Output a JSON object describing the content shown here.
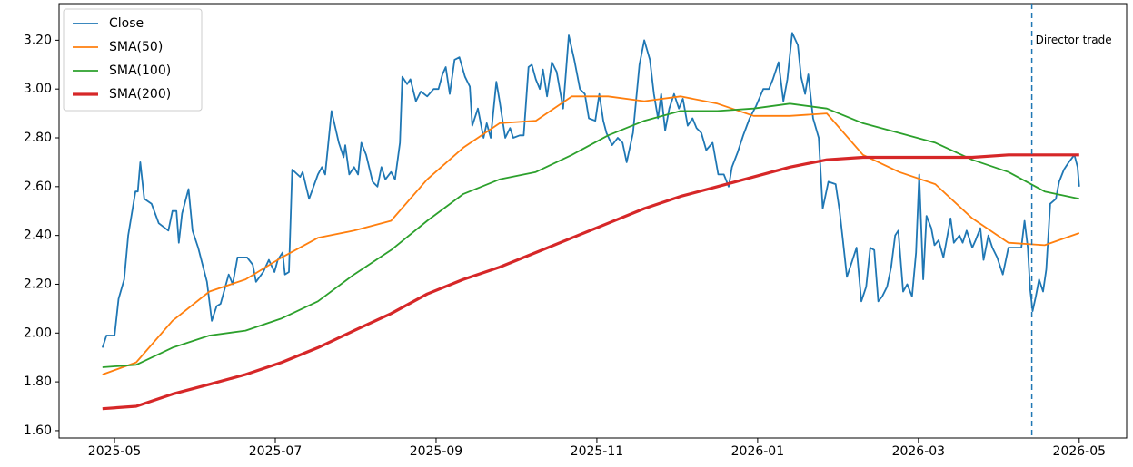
{
  "chart_data": {
    "type": "line",
    "xlim": [
      4.31,
      17.59
    ],
    "ylim": [
      1.57,
      3.35
    ],
    "xticks": [
      {
        "value": 5,
        "label": "2025-05"
      },
      {
        "value": 7,
        "label": "2025-07"
      },
      {
        "value": 9,
        "label": "2025-09"
      },
      {
        "value": 11,
        "label": "2025-11"
      },
      {
        "value": 13,
        "label": "2026-01"
      },
      {
        "value": 15,
        "label": "2026-03"
      },
      {
        "value": 17,
        "label": "2026-05"
      }
    ],
    "yticks": [
      {
        "value": 1.6,
        "label": "1.60"
      },
      {
        "value": 1.8,
        "label": "1.80"
      },
      {
        "value": 2.0,
        "label": "2.00"
      },
      {
        "value": 2.2,
        "label": "2.20"
      },
      {
        "value": 2.4,
        "label": "2.40"
      },
      {
        "value": 2.6,
        "label": "2.60"
      },
      {
        "value": 2.8,
        "label": "2.80"
      },
      {
        "value": 3.0,
        "label": "3.00"
      },
      {
        "value": 3.2,
        "label": "3.20"
      }
    ],
    "legend": "upper left",
    "series": [
      {
        "name": "Close",
        "color": "#1f77b4",
        "x": [
          4.85,
          4.9,
          5.0,
          5.05,
          5.12,
          5.17,
          5.26,
          5.29,
          5.32,
          5.37,
          5.46,
          5.55,
          5.67,
          5.72,
          5.77,
          5.8,
          5.84,
          5.92,
          5.97,
          6.04,
          6.15,
          6.21,
          6.27,
          6.32,
          6.42,
          6.47,
          6.53,
          6.65,
          6.72,
          6.76,
          6.85,
          6.92,
          6.99,
          7.03,
          7.09,
          7.12,
          7.17,
          7.21,
          7.31,
          7.34,
          7.42,
          7.53,
          7.58,
          7.62,
          7.7,
          7.79,
          7.85,
          7.87,
          7.92,
          7.98,
          8.03,
          8.07,
          8.13,
          8.21,
          8.27,
          8.32,
          8.37,
          8.44,
          8.49,
          8.55,
          8.58,
          8.64,
          8.68,
          8.75,
          8.81,
          8.89,
          8.97,
          9.03,
          9.08,
          9.12,
          9.17,
          9.23,
          9.29,
          9.36,
          9.42,
          9.45,
          9.52,
          9.59,
          9.63,
          9.68,
          9.75,
          9.79,
          9.86,
          9.92,
          9.96,
          10.04,
          10.09,
          10.15,
          10.19,
          10.24,
          10.29,
          10.33,
          10.38,
          10.44,
          10.5,
          10.58,
          10.65,
          10.72,
          10.79,
          10.85,
          10.9,
          10.98,
          11.03,
          11.08,
          11.12,
          11.19,
          11.26,
          11.32,
          11.37,
          11.45,
          11.53,
          11.59,
          11.66,
          11.71,
          11.76,
          11.8,
          11.85,
          11.9,
          11.96,
          12.02,
          12.07,
          12.13,
          12.19,
          12.24,
          12.3,
          12.36,
          12.44,
          12.51,
          12.58,
          12.64,
          12.68,
          12.75,
          12.82,
          12.9,
          12.98,
          13.07,
          13.14,
          13.19,
          13.26,
          13.32,
          13.37,
          13.43,
          13.5,
          13.54,
          13.59,
          13.63,
          13.69,
          13.76,
          13.81,
          13.88,
          13.97,
          14.02,
          14.06,
          14.11,
          14.18,
          14.23,
          14.29,
          14.35,
          14.4,
          14.45,
          14.5,
          14.55,
          14.61,
          14.66,
          14.71,
          14.75,
          14.81,
          14.86,
          14.92,
          14.97,
          15.01,
          15.06,
          15.1,
          15.16,
          15.2,
          15.25,
          15.31,
          15.35,
          15.4,
          15.44,
          15.51,
          15.55,
          15.6,
          15.67,
          15.71,
          15.77,
          15.81,
          15.87,
          15.92,
          15.98,
          16.05,
          16.12,
          16.21,
          16.28,
          16.32,
          16.36,
          16.39,
          16.42,
          16.46,
          16.5,
          16.55,
          16.59,
          16.64,
          16.71,
          16.75,
          16.81,
          16.87,
          16.94,
          16.98,
          17.0
        ],
        "values": [
          1.94,
          1.99,
          1.99,
          2.14,
          2.22,
          2.4,
          2.58,
          2.58,
          2.7,
          2.55,
          2.53,
          2.45,
          2.42,
          2.5,
          2.5,
          2.37,
          2.49,
          2.59,
          2.42,
          2.35,
          2.21,
          2.05,
          2.11,
          2.12,
          2.24,
          2.2,
          2.31,
          2.31,
          2.28,
          2.21,
          2.25,
          2.3,
          2.25,
          2.3,
          2.33,
          2.24,
          2.25,
          2.67,
          2.64,
          2.66,
          2.55,
          2.65,
          2.68,
          2.65,
          2.91,
          2.78,
          2.72,
          2.77,
          2.65,
          2.68,
          2.65,
          2.78,
          2.73,
          2.62,
          2.6,
          2.68,
          2.63,
          2.66,
          2.63,
          2.78,
          3.05,
          3.02,
          3.04,
          2.95,
          2.99,
          2.97,
          3.0,
          3.0,
          3.06,
          3.09,
          2.98,
          3.12,
          3.13,
          3.05,
          3.01,
          2.85,
          2.92,
          2.8,
          2.86,
          2.8,
          3.03,
          2.95,
          2.8,
          2.84,
          2.8,
          2.81,
          2.81,
          3.09,
          3.1,
          3.04,
          3.0,
          3.08,
          2.97,
          3.11,
          3.07,
          2.92,
          3.22,
          3.12,
          3.0,
          2.98,
          2.88,
          2.87,
          2.98,
          2.87,
          2.82,
          2.77,
          2.8,
          2.78,
          2.7,
          2.82,
          3.1,
          3.2,
          3.12,
          2.98,
          2.88,
          2.98,
          2.83,
          2.92,
          2.98,
          2.92,
          2.96,
          2.85,
          2.88,
          2.84,
          2.82,
          2.75,
          2.78,
          2.65,
          2.65,
          2.6,
          2.68,
          2.74,
          2.81,
          2.88,
          2.93,
          3.0,
          3.0,
          3.04,
          3.11,
          2.95,
          3.04,
          3.23,
          3.18,
          3.05,
          2.98,
          3.06,
          2.88,
          2.8,
          2.51,
          2.62,
          2.61,
          2.5,
          2.38,
          2.23,
          2.3,
          2.35,
          2.13,
          2.19,
          2.35,
          2.34,
          2.13,
          2.15,
          2.19,
          2.27,
          2.4,
          2.42,
          2.17,
          2.2,
          2.15,
          2.33,
          2.65,
          2.22,
          2.48,
          2.43,
          2.36,
          2.38,
          2.31,
          2.38,
          2.47,
          2.37,
          2.4,
          2.37,
          2.42,
          2.35,
          2.38,
          2.43,
          2.3,
          2.4,
          2.35,
          2.31,
          2.24,
          2.35,
          2.35,
          2.35,
          2.46,
          2.35,
          2.18,
          2.09,
          2.15,
          2.22,
          2.17,
          2.26,
          2.53,
          2.55,
          2.62,
          2.67,
          2.7,
          2.73,
          2.68,
          2.6
        ]
      },
      {
        "name": "SMA(50)",
        "color": "#ff7f0e",
        "x": [
          4.85,
          5.27,
          5.72,
          6.18,
          6.63,
          7.08,
          7.53,
          7.98,
          8.44,
          8.89,
          9.34,
          9.79,
          10.24,
          10.69,
          11.14,
          11.59,
          12.04,
          12.5,
          12.95,
          13.4,
          13.86,
          14.31,
          14.76,
          15.21,
          15.67,
          16.12,
          16.57,
          17.0
        ],
        "values": [
          1.83,
          1.88,
          2.05,
          2.17,
          2.22,
          2.31,
          2.39,
          2.42,
          2.46,
          2.63,
          2.76,
          2.86,
          2.87,
          2.97,
          2.97,
          2.95,
          2.97,
          2.94,
          2.89,
          2.89,
          2.9,
          2.73,
          2.66,
          2.61,
          2.47,
          2.37,
          2.36,
          2.41
        ]
      },
      {
        "name": "SMA(100)",
        "color": "#2ca02c",
        "x": [
          4.85,
          5.27,
          5.72,
          6.18,
          6.63,
          7.08,
          7.53,
          7.98,
          8.44,
          8.89,
          9.34,
          9.79,
          10.24,
          10.69,
          11.14,
          11.59,
          12.04,
          12.5,
          12.95,
          13.4,
          13.86,
          14.31,
          14.76,
          15.21,
          15.67,
          16.12,
          16.57,
          17.0
        ],
        "values": [
          1.86,
          1.87,
          1.94,
          1.99,
          2.01,
          2.06,
          2.13,
          2.24,
          2.34,
          2.46,
          2.57,
          2.63,
          2.66,
          2.73,
          2.81,
          2.87,
          2.91,
          2.91,
          2.92,
          2.94,
          2.92,
          2.86,
          2.82,
          2.78,
          2.71,
          2.66,
          2.58,
          2.55
        ]
      },
      {
        "name": "SMA(200)",
        "color": "#d62728",
        "x": [
          4.85,
          5.27,
          5.72,
          6.18,
          6.63,
          7.08,
          7.53,
          7.98,
          8.44,
          8.89,
          9.34,
          9.79,
          10.24,
          10.69,
          11.14,
          11.59,
          12.04,
          12.5,
          12.95,
          13.4,
          13.86,
          14.31,
          14.76,
          15.21,
          15.67,
          16.12,
          16.57,
          17.0
        ],
        "values": [
          1.69,
          1.7,
          1.75,
          1.79,
          1.83,
          1.88,
          1.94,
          2.01,
          2.08,
          2.16,
          2.22,
          2.27,
          2.33,
          2.39,
          2.45,
          2.51,
          2.56,
          2.6,
          2.64,
          2.68,
          2.71,
          2.72,
          2.72,
          2.72,
          2.72,
          2.73,
          2.73,
          2.73
        ]
      }
    ],
    "vlines": [
      {
        "x": 16.41,
        "label": "Director trade",
        "color": "#1f77b4"
      }
    ]
  }
}
